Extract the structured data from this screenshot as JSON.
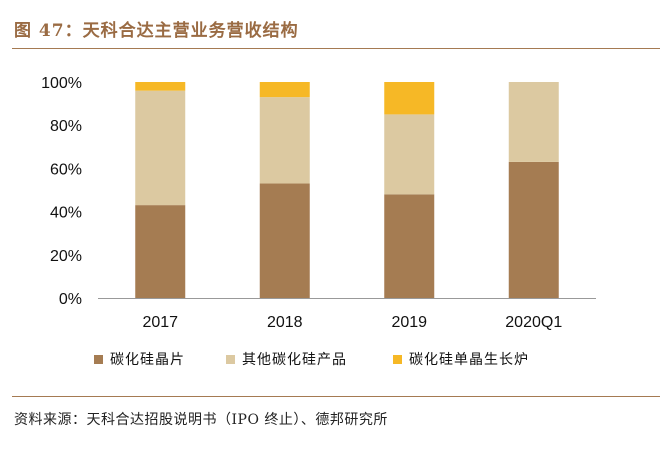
{
  "header": {
    "title": "图 47：天科合达主营业务营收结构"
  },
  "footer": {
    "source": "资料来源：天科合达招股说明书（IPO 终止）、德邦研究所"
  },
  "colors": {
    "series1": "#a57c52",
    "series2": "#dcc9a1",
    "series3": "#f6b826",
    "axis": "#999999"
  },
  "chart_data": {
    "type": "bar",
    "stacked": true,
    "title": "",
    "xlabel": "",
    "ylabel": "",
    "ylim": [
      0,
      100
    ],
    "yticks": [
      "0%",
      "20%",
      "40%",
      "60%",
      "80%",
      "100%"
    ],
    "categories": [
      "2017",
      "2018",
      "2019",
      "2020Q1"
    ],
    "series": [
      {
        "name": "碳化硅晶片",
        "values": [
          43,
          53,
          48,
          63
        ]
      },
      {
        "name": "其他碳化硅产品",
        "values": [
          53,
          40,
          37,
          37
        ]
      },
      {
        "name": "碳化硅单晶生长炉",
        "values": [
          4,
          7,
          15,
          0
        ]
      }
    ],
    "legend_position": "bottom"
  }
}
